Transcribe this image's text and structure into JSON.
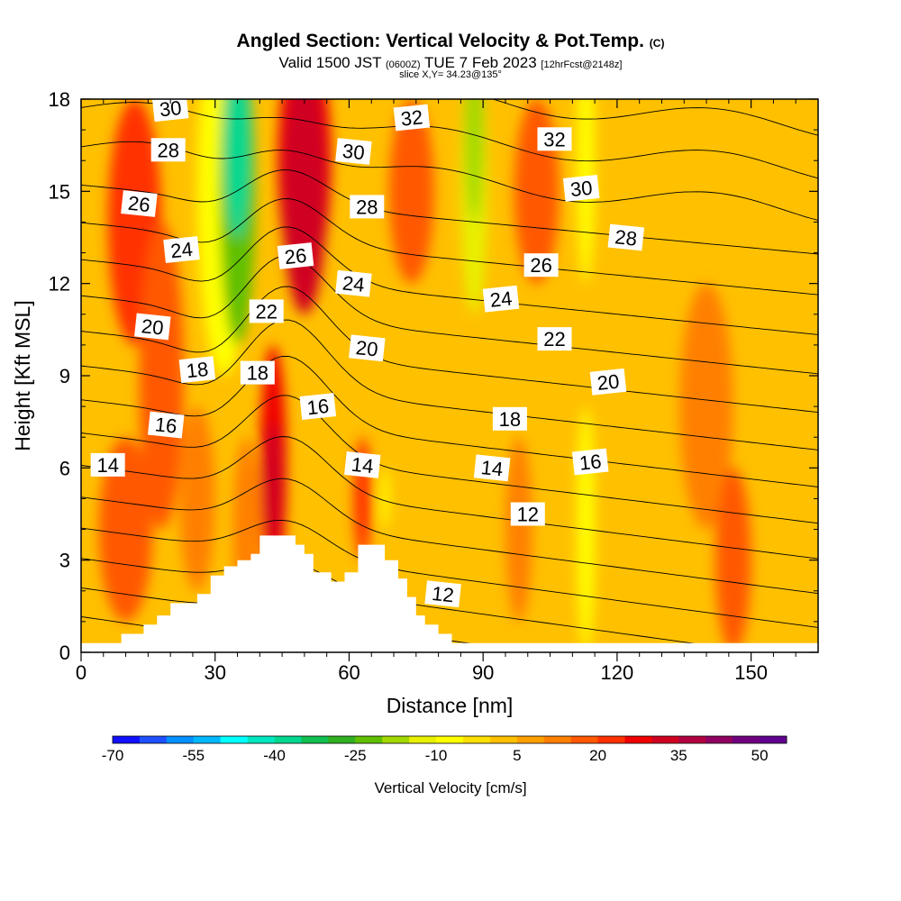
{
  "header": {
    "title": "Angled Section: Vertical Velocity & Pot.Temp.",
    "title_suffix": "(C)",
    "valid_label": "Valid 1500 JST",
    "valid_utc": "(0600Z)",
    "valid_date": "TUE 7 Feb 2023",
    "forecast": "[12hrFcst@2148z]",
    "slice": "slice X,Y= 34.23@135°"
  },
  "chart_data": {
    "type": "heatmap",
    "xlabel": "Distance [nm]",
    "ylabel": "Height [Kft MSL]",
    "xlim": [
      0,
      165
    ],
    "ylim": [
      0,
      18
    ],
    "xticks": [
      0,
      30,
      60,
      90,
      120,
      150
    ],
    "yticks": [
      0,
      3,
      6,
      9,
      12,
      15,
      18
    ],
    "colorbar": {
      "label": "Vertical Velocity [cm/s]",
      "range": [
        -70,
        55
      ],
      "step": 5,
      "tick_labels": [
        -70,
        -55,
        -40,
        -25,
        -10,
        5,
        20,
        35,
        50
      ],
      "colors": [
        "#1010ff",
        "#1e50ff",
        "#0090ff",
        "#00b8ff",
        "#00ffff",
        "#00e8c0",
        "#00d890",
        "#10c050",
        "#30b020",
        "#60c000",
        "#a0d800",
        "#e8f000",
        "#ffff00",
        "#ffe000",
        "#ffc000",
        "#ffa000",
        "#ff8000",
        "#ff5800",
        "#ff3000",
        "#f00000",
        "#d00020",
        "#b00040",
        "#900060",
        "#700080",
        "#600090"
      ]
    },
    "contour_field": "Potential temperature (C)",
    "contour_labels": [
      {
        "x": 20,
        "y": 17.7,
        "v": "30"
      },
      {
        "x": 19.5,
        "y": 16.35,
        "v": "28"
      },
      {
        "x": 13,
        "y": 14.6,
        "v": "26"
      },
      {
        "x": 22.5,
        "y": 13.1,
        "v": "24"
      },
      {
        "x": 41.5,
        "y": 11.1,
        "v": "22"
      },
      {
        "x": 16,
        "y": 10.6,
        "v": "20"
      },
      {
        "x": 26,
        "y": 9.2,
        "v": "18"
      },
      {
        "x": 39.5,
        "y": 9.1,
        "v": "18"
      },
      {
        "x": 19,
        "y": 7.4,
        "v": "16"
      },
      {
        "x": 53,
        "y": 8.0,
        "v": "16"
      },
      {
        "x": 6,
        "y": 6.1,
        "v": "14"
      },
      {
        "x": 63,
        "y": 6.1,
        "v": "14"
      },
      {
        "x": 74,
        "y": 17.4,
        "v": "32"
      },
      {
        "x": 106,
        "y": 16.7,
        "v": "32"
      },
      {
        "x": 61,
        "y": 16.3,
        "v": "30"
      },
      {
        "x": 112,
        "y": 15.1,
        "v": "30"
      },
      {
        "x": 64,
        "y": 14.5,
        "v": "28"
      },
      {
        "x": 122,
        "y": 13.5,
        "v": "28"
      },
      {
        "x": 48,
        "y": 12.9,
        "v": "26"
      },
      {
        "x": 103,
        "y": 12.6,
        "v": "26"
      },
      {
        "x": 61,
        "y": 12.0,
        "v": "24"
      },
      {
        "x": 94,
        "y": 11.5,
        "v": "24"
      },
      {
        "x": 106,
        "y": 10.2,
        "v": "22"
      },
      {
        "x": 64,
        "y": 9.9,
        "v": "20"
      },
      {
        "x": 118,
        "y": 8.8,
        "v": "20"
      },
      {
        "x": 96,
        "y": 7.6,
        "v": "18"
      },
      {
        "x": 92,
        "y": 6.0,
        "v": "14"
      },
      {
        "x": 114,
        "y": 6.2,
        "v": "16"
      },
      {
        "x": 100,
        "y": 4.5,
        "v": "12"
      },
      {
        "x": 81,
        "y": 1.9,
        "v": "12"
      }
    ],
    "terrain": [
      [
        0,
        0.3
      ],
      [
        9,
        0.3
      ],
      [
        9,
        0.6
      ],
      [
        14,
        0.6
      ],
      [
        14,
        0.9
      ],
      [
        17,
        0.9
      ],
      [
        17,
        1.2
      ],
      [
        20,
        1.2
      ],
      [
        20,
        1.6
      ],
      [
        26,
        1.6
      ],
      [
        26,
        1.9
      ],
      [
        29,
        1.9
      ],
      [
        29,
        2.5
      ],
      [
        32,
        2.5
      ],
      [
        32,
        2.8
      ],
      [
        35,
        2.8
      ],
      [
        35,
        3.0
      ],
      [
        38,
        3.0
      ],
      [
        38,
        3.2
      ],
      [
        40,
        3.2
      ],
      [
        40,
        3.8
      ],
      [
        48,
        3.8
      ],
      [
        48,
        3.5
      ],
      [
        50,
        3.5
      ],
      [
        50,
        3.2
      ],
      [
        52,
        3.2
      ],
      [
        52,
        2.6
      ],
      [
        56,
        2.6
      ],
      [
        56,
        2.3
      ],
      [
        59,
        2.3
      ],
      [
        59,
        2.6
      ],
      [
        62,
        2.6
      ],
      [
        62,
        3.5
      ],
      [
        68,
        3.5
      ],
      [
        68,
        3.0
      ],
      [
        71,
        3.0
      ],
      [
        71,
        2.4
      ],
      [
        73,
        2.4
      ],
      [
        73,
        1.8
      ],
      [
        75,
        1.8
      ],
      [
        75,
        1.2
      ],
      [
        77,
        1.2
      ],
      [
        77,
        0.9
      ],
      [
        80,
        0.9
      ],
      [
        80,
        0.6
      ],
      [
        83,
        0.6
      ],
      [
        83,
        0.3
      ],
      [
        165,
        0.3
      ]
    ]
  }
}
